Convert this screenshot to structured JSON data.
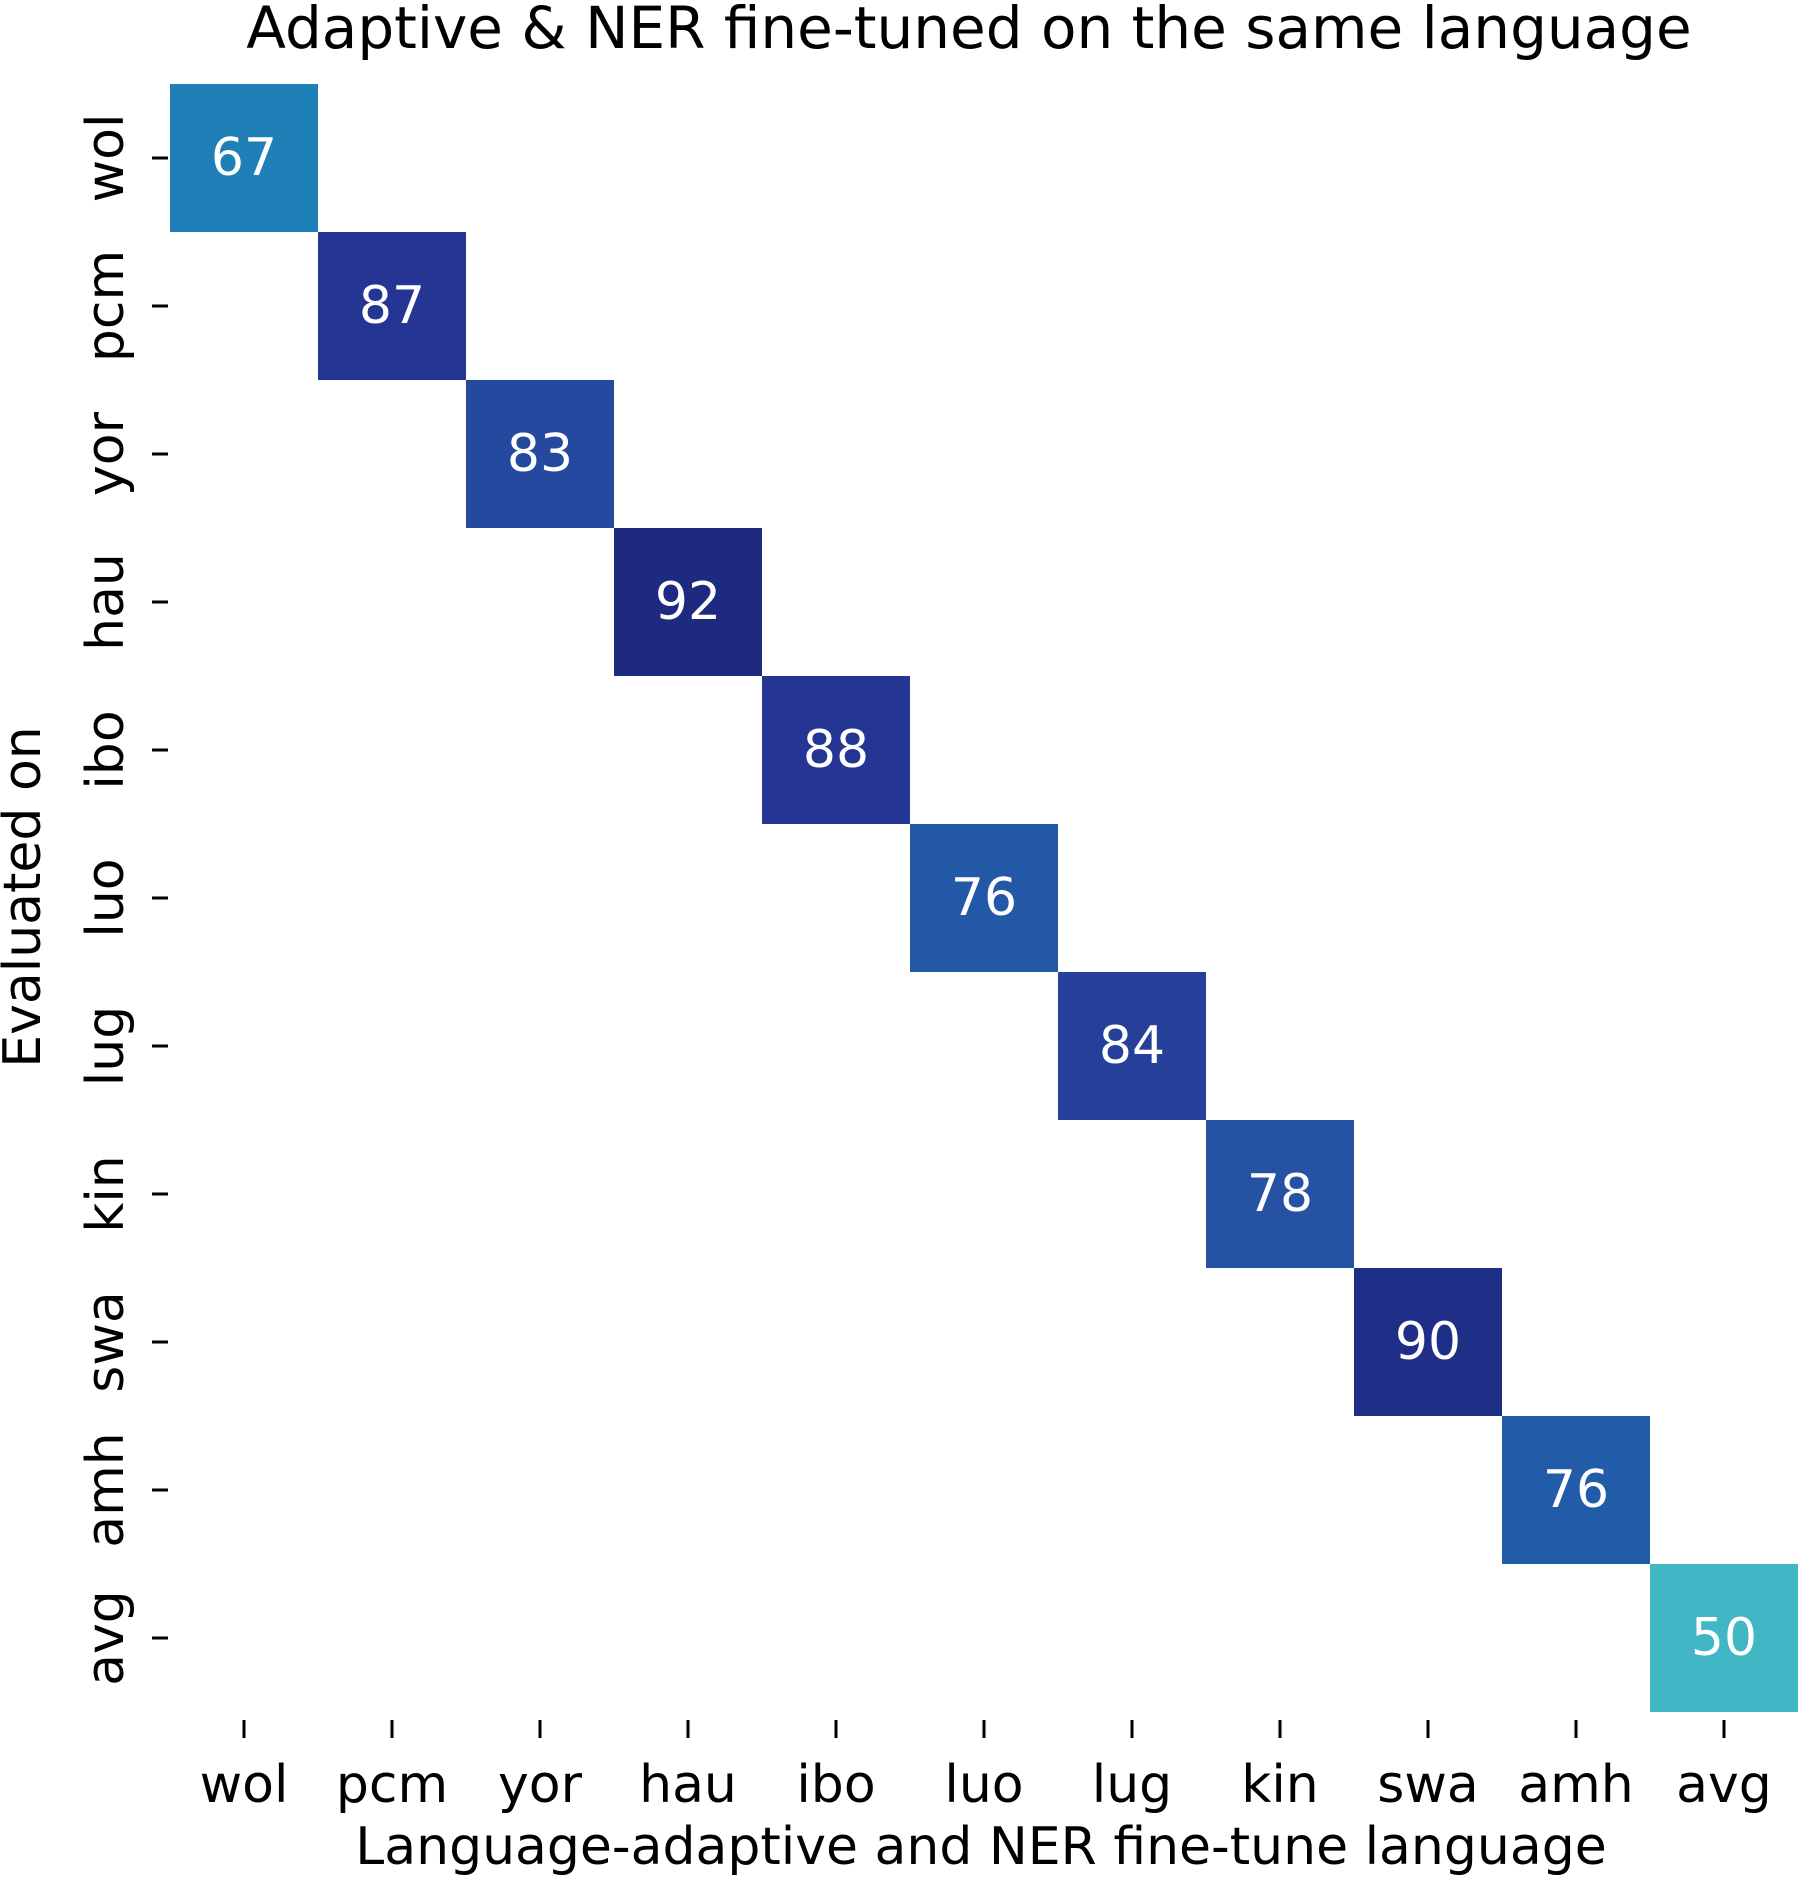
{
  "chart_data": {
    "type": "heatmap",
    "title": "Adaptive & NER fine-tuned on the same language",
    "xlabel": "Language-adaptive and NER fine-tune language",
    "ylabel": "Evaluated on",
    "x_categories": [
      "wol",
      "pcm",
      "yor",
      "hau",
      "ibo",
      "luo",
      "lug",
      "kin",
      "swa",
      "amh",
      "avg"
    ],
    "y_categories": [
      "wol",
      "pcm",
      "yor",
      "hau",
      "ibo",
      "luo",
      "lug",
      "kin",
      "swa",
      "amh",
      "avg"
    ],
    "cells": [
      {
        "x": "wol",
        "y": "wol",
        "value": 67,
        "color": "#1f80b8"
      },
      {
        "x": "pcm",
        "y": "pcm",
        "value": 87,
        "color": "#253594"
      },
      {
        "x": "yor",
        "y": "yor",
        "value": 83,
        "color": "#2649a0"
      },
      {
        "x": "hau",
        "y": "hau",
        "value": 92,
        "color": "#1d2a80"
      },
      {
        "x": "ibo",
        "y": "ibo",
        "value": 88,
        "color": "#243593"
      },
      {
        "x": "luo",
        "y": "luo",
        "value": 76,
        "color": "#2258a6"
      },
      {
        "x": "lug",
        "y": "lug",
        "value": 84,
        "color": "#253f9a"
      },
      {
        "x": "kin",
        "y": "kin",
        "value": 78,
        "color": "#2552a3"
      },
      {
        "x": "swa",
        "y": "swa",
        "value": 90,
        "color": "#1f2e87"
      },
      {
        "x": "amh",
        "y": "amh",
        "value": 76,
        "color": "#225ba8"
      },
      {
        "x": "avg",
        "y": "avg",
        "value": 50,
        "color": "#41b6c4"
      }
    ],
    "colorbar": false,
    "grid": false
  }
}
